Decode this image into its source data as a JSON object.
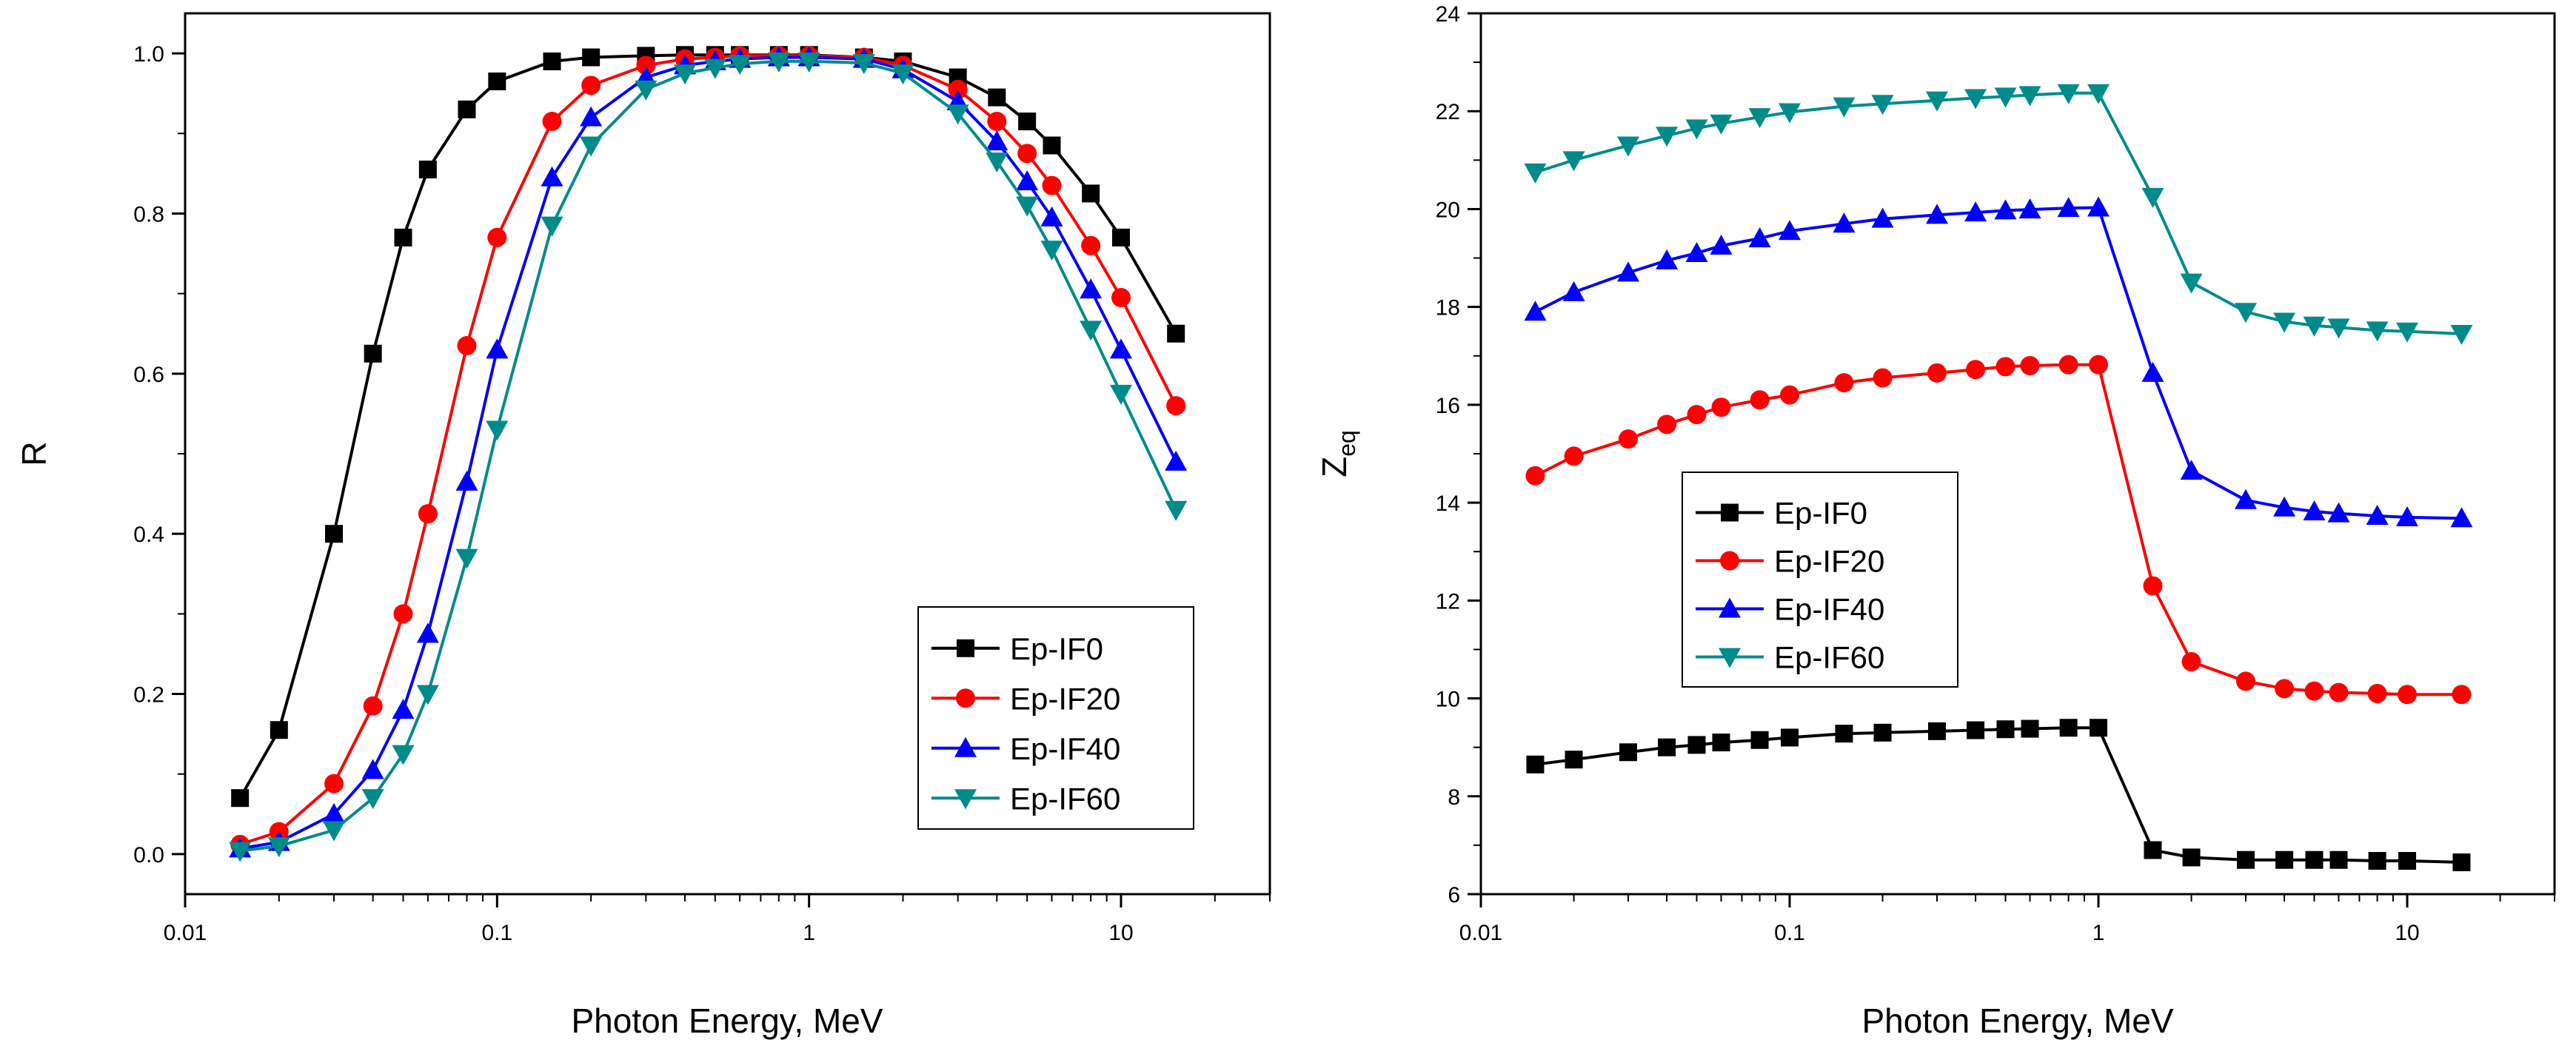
{
  "chart_data": [
    {
      "type": "line",
      "panel": "left",
      "title": "",
      "xlabel": "Photon Energy, MeV",
      "ylabel": "R",
      "x_scale": "log",
      "xlim": [
        0.01,
        30
      ],
      "ylim": [
        -0.05,
        1.05
      ],
      "x_ticks": [
        0.01,
        0.1,
        1,
        10
      ],
      "x_tick_labels": [
        "0.01",
        "0.1",
        "1",
        "10"
      ],
      "y_ticks": [
        0.0,
        0.2,
        0.4,
        0.6,
        0.8,
        1.0
      ],
      "y_tick_labels": [
        "0.0",
        "0.2",
        "0.4",
        "0.6",
        "0.8",
        "1.0"
      ],
      "legend_position": "bottom-right",
      "x": [
        0.015,
        0.02,
        0.03,
        0.04,
        0.05,
        0.06,
        0.08,
        0.1,
        0.15,
        0.2,
        0.3,
        0.4,
        0.5,
        0.6,
        0.8,
        1,
        1.5,
        2,
        3,
        4,
        5,
        6,
        8,
        10,
        15
      ],
      "series": [
        {
          "name": "Ep-IF0",
          "color": "#000000",
          "marker": "square",
          "values": [
            0.07,
            0.155,
            0.4,
            0.625,
            0.77,
            0.855,
            0.93,
            0.965,
            0.99,
            0.995,
            0.997,
            0.998,
            0.998,
            0.998,
            0.998,
            0.998,
            0.995,
            0.99,
            0.97,
            0.945,
            0.915,
            0.885,
            0.825,
            0.77,
            0.65
          ]
        },
        {
          "name": "Ep-IF20",
          "color": "#ff0000",
          "marker": "circle",
          "values": [
            0.012,
            0.028,
            0.088,
            0.185,
            0.3,
            0.425,
            0.635,
            0.77,
            0.915,
            0.96,
            0.985,
            0.993,
            0.995,
            0.997,
            0.997,
            0.997,
            0.995,
            0.985,
            0.955,
            0.915,
            0.875,
            0.835,
            0.76,
            0.695,
            0.56
          ]
        },
        {
          "name": "Ep-IF40",
          "color": "#0000ff",
          "marker": "triangle-up",
          "values": [
            0.007,
            0.015,
            0.05,
            0.105,
            0.18,
            0.275,
            0.465,
            0.63,
            0.845,
            0.92,
            0.97,
            0.985,
            0.99,
            0.993,
            0.995,
            0.995,
            0.993,
            0.98,
            0.94,
            0.89,
            0.84,
            0.795,
            0.705,
            0.63,
            0.49
          ]
        },
        {
          "name": "Ep-IF60",
          "color": "#008b8b",
          "marker": "triangle-down",
          "values": [
            0.004,
            0.01,
            0.03,
            0.07,
            0.125,
            0.2,
            0.37,
            0.53,
            0.785,
            0.885,
            0.955,
            0.975,
            0.982,
            0.987,
            0.99,
            0.99,
            0.988,
            0.975,
            0.925,
            0.865,
            0.81,
            0.755,
            0.655,
            0.575,
            0.43
          ]
        }
      ]
    },
    {
      "type": "line",
      "panel": "right",
      "title": "",
      "xlabel": "Photon Energy, MeV",
      "ylabel": "Zeq",
      "ylabel_main": "Z",
      "ylabel_sub": "eq",
      "x_scale": "log",
      "xlim": [
        0.01,
        30
      ],
      "ylim": [
        6,
        24
      ],
      "x_ticks": [
        0.01,
        0.1,
        1,
        10
      ],
      "x_tick_labels": [
        "0.01",
        "0.1",
        "1",
        "10"
      ],
      "y_ticks": [
        6,
        8,
        10,
        12,
        14,
        16,
        18,
        20,
        22,
        24
      ],
      "y_tick_labels": [
        "6",
        "8",
        "10",
        "12",
        "14",
        "16",
        "18",
        "20",
        "22",
        "24"
      ],
      "legend_position": "middle-left",
      "x": [
        0.015,
        0.02,
        0.03,
        0.04,
        0.05,
        0.06,
        0.08,
        0.1,
        0.15,
        0.2,
        0.3,
        0.4,
        0.5,
        0.6,
        0.8,
        1,
        1.5,
        2,
        3,
        4,
        5,
        6,
        8,
        10,
        15
      ],
      "series": [
        {
          "name": "Ep-IF0",
          "color": "#000000",
          "marker": "square",
          "values": [
            8.65,
            8.75,
            8.9,
            9.0,
            9.05,
            9.1,
            9.15,
            9.2,
            9.28,
            9.3,
            9.33,
            9.35,
            9.37,
            9.38,
            9.4,
            9.4,
            6.9,
            6.75,
            6.7,
            6.7,
            6.7,
            6.7,
            6.68,
            6.68,
            6.65
          ]
        },
        {
          "name": "Ep-IF20",
          "color": "#ff0000",
          "marker": "circle",
          "values": [
            14.55,
            14.95,
            15.3,
            15.6,
            15.8,
            15.95,
            16.1,
            16.2,
            16.45,
            16.55,
            16.65,
            16.72,
            16.78,
            16.8,
            16.82,
            16.82,
            12.3,
            10.75,
            10.35,
            10.2,
            10.15,
            10.12,
            10.1,
            10.08,
            10.08
          ]
        },
        {
          "name": "Ep-IF40",
          "color": "#0000ff",
          "marker": "triangle-up",
          "values": [
            17.9,
            18.3,
            18.7,
            18.95,
            19.1,
            19.25,
            19.4,
            19.55,
            19.7,
            19.8,
            19.88,
            19.93,
            19.97,
            19.99,
            20.02,
            20.03,
            16.65,
            14.65,
            14.05,
            13.9,
            13.82,
            13.78,
            13.73,
            13.7,
            13.68
          ]
        },
        {
          "name": "Ep-IF60",
          "color": "#008b8b",
          "marker": "triangle-down",
          "values": [
            20.75,
            21.0,
            21.3,
            21.5,
            21.65,
            21.75,
            21.88,
            21.98,
            22.1,
            22.15,
            22.22,
            22.27,
            22.3,
            22.33,
            22.37,
            22.37,
            20.25,
            18.5,
            17.9,
            17.7,
            17.62,
            17.58,
            17.52,
            17.5,
            17.45
          ]
        }
      ]
    }
  ]
}
